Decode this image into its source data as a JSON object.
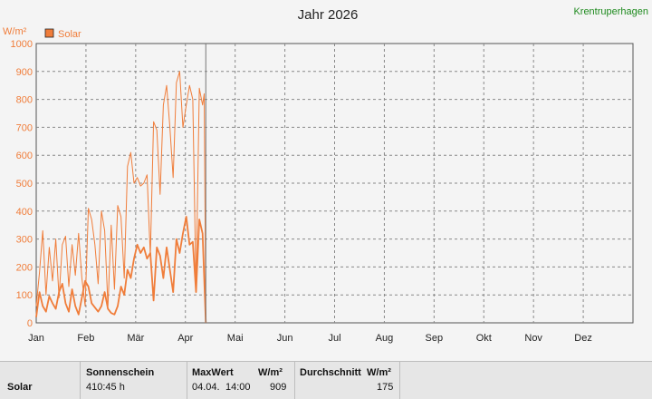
{
  "title": "Jahr 2026",
  "station": "Krentruperhagen",
  "y_unit": "W/m²",
  "legend": {
    "label": "Solar",
    "color": "#f07d3a"
  },
  "colors": {
    "series": "#f07d3a",
    "station": "#1e8a1e",
    "cursor": "#777777"
  },
  "chart_data": {
    "type": "line",
    "title": "Jahr 2026",
    "ylabel": "W/m²",
    "ylim": [
      0,
      1000
    ],
    "yticks": [
      "0",
      "100",
      "200",
      "300",
      "400",
      "500",
      "600",
      "700",
      "800",
      "900",
      "1000"
    ],
    "months": [
      "Jan",
      "Feb",
      "Mär",
      "Apr",
      "Mai",
      "Jun",
      "Jul",
      "Aug",
      "Sep",
      "Okt",
      "Nov",
      "Dez"
    ],
    "grid": true,
    "legend_position": "top-left",
    "cursor_day": 105,
    "series": [
      {
        "name": "Solar",
        "kind": "max",
        "x": [
          1,
          3,
          5,
          7,
          9,
          11,
          13,
          15,
          17,
          19,
          21,
          23,
          25,
          27,
          29,
          31,
          33,
          35,
          37,
          39,
          41,
          43,
          45,
          47,
          49,
          51,
          53,
          55,
          57,
          59,
          61,
          63,
          65,
          67,
          69,
          71,
          73,
          75,
          77,
          79,
          81,
          83,
          85,
          87,
          89,
          91,
          93,
          95,
          97,
          99,
          101,
          103,
          104,
          105
        ],
        "y": [
          60,
          180,
          330,
          100,
          270,
          150,
          300,
          90,
          280,
          310,
          130,
          280,
          170,
          320,
          160,
          60,
          410,
          370,
          280,
          140,
          400,
          330,
          60,
          350,
          120,
          420,
          380,
          160,
          560,
          610,
          500,
          520,
          490,
          500,
          530,
          240,
          720,
          690,
          460,
          780,
          850,
          700,
          520,
          860,
          900,
          700,
          780,
          850,
          800,
          120,
          840,
          780,
          820,
          0
        ]
      },
      {
        "name": "Solar",
        "kind": "avg",
        "x": [
          1,
          3,
          5,
          7,
          9,
          11,
          13,
          15,
          17,
          19,
          21,
          23,
          25,
          27,
          29,
          31,
          33,
          35,
          37,
          39,
          41,
          43,
          45,
          47,
          49,
          51,
          53,
          55,
          57,
          59,
          61,
          63,
          65,
          67,
          69,
          71,
          73,
          75,
          77,
          79,
          81,
          83,
          85,
          87,
          89,
          91,
          93,
          95,
          97,
          99,
          101,
          103,
          104,
          105
        ],
        "y": [
          20,
          110,
          60,
          40,
          95,
          70,
          50,
          110,
          140,
          70,
          40,
          120,
          60,
          30,
          90,
          150,
          130,
          70,
          55,
          40,
          60,
          110,
          50,
          35,
          30,
          60,
          130,
          100,
          190,
          160,
          230,
          280,
          250,
          270,
          230,
          250,
          80,
          270,
          240,
          160,
          270,
          190,
          110,
          300,
          250,
          320,
          380,
          280,
          290,
          110,
          370,
          320,
          160,
          0
        ]
      }
    ]
  },
  "stats": {
    "row_label": "Solar",
    "headers": {
      "sonnenschein": "Sonnenschein",
      "maxwert": "MaxWert",
      "maxwert_unit": "W/m²",
      "durchschnitt": "Durchschnitt",
      "durchschnitt_unit": "W/m²"
    },
    "values": {
      "sonnenschein": "410:45 h",
      "max_date": "04.04.",
      "max_time": "14:00",
      "max_value": "909",
      "avg_value": "175"
    }
  }
}
